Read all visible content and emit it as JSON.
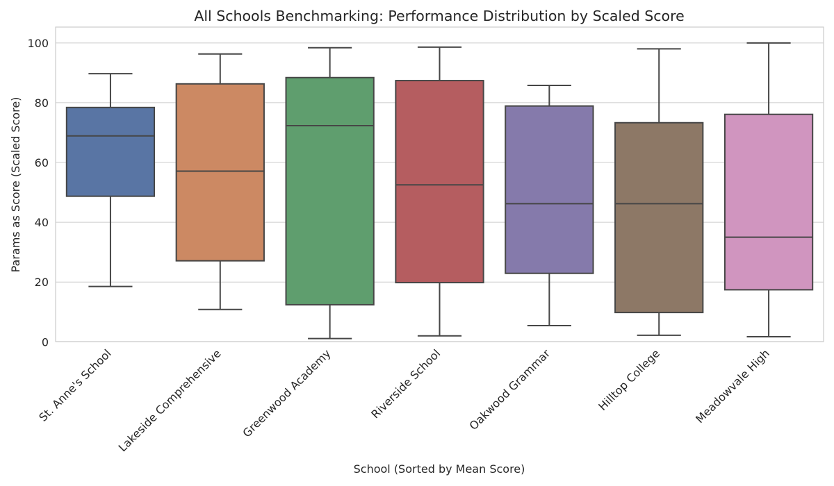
{
  "chart_data": {
    "type": "box",
    "title": "All Schools Benchmarking: Performance Distribution by Scaled Score",
    "xlabel": "School (Sorted by Mean Score)",
    "ylabel": "Params as Score (Scaled Score)",
    "ylim": [
      0,
      105.3
    ],
    "yticks": [
      0,
      20,
      40,
      60,
      80,
      100
    ],
    "grid": true,
    "categories": [
      "St. Anne's School",
      "Lakeside Comprehensive",
      "Greenwood Academy",
      "Riverside School",
      "Oakwood Grammar",
      "Hilltop College",
      "Meadowvale High"
    ],
    "boxes": [
      {
        "whislo": 18.5,
        "q1": 48.7,
        "med": 68.9,
        "q3": 78.4,
        "whishi": 89.7,
        "color": "#5975a4"
      },
      {
        "whislo": 10.8,
        "q1": 27.1,
        "med": 57.1,
        "q3": 86.3,
        "whishi": 96.3,
        "color": "#cc8963"
      },
      {
        "whislo": 1.1,
        "q1": 12.4,
        "med": 72.3,
        "q3": 88.4,
        "whishi": 98.4,
        "color": "#5f9e6e"
      },
      {
        "whislo": 2.0,
        "q1": 19.8,
        "med": 52.5,
        "q3": 87.4,
        "whishi": 98.6,
        "color": "#b55d60"
      },
      {
        "whislo": 5.4,
        "q1": 22.9,
        "med": 46.2,
        "q3": 78.9,
        "whishi": 85.8,
        "color": "#857aab"
      },
      {
        "whislo": 2.2,
        "q1": 9.8,
        "med": 46.2,
        "q3": 73.3,
        "whishi": 98.0,
        "color": "#8d7866"
      },
      {
        "whislo": 1.7,
        "q1": 17.4,
        "med": 35.0,
        "q3": 76.1,
        "whishi": 100.0,
        "color": "#d095bf"
      }
    ]
  }
}
